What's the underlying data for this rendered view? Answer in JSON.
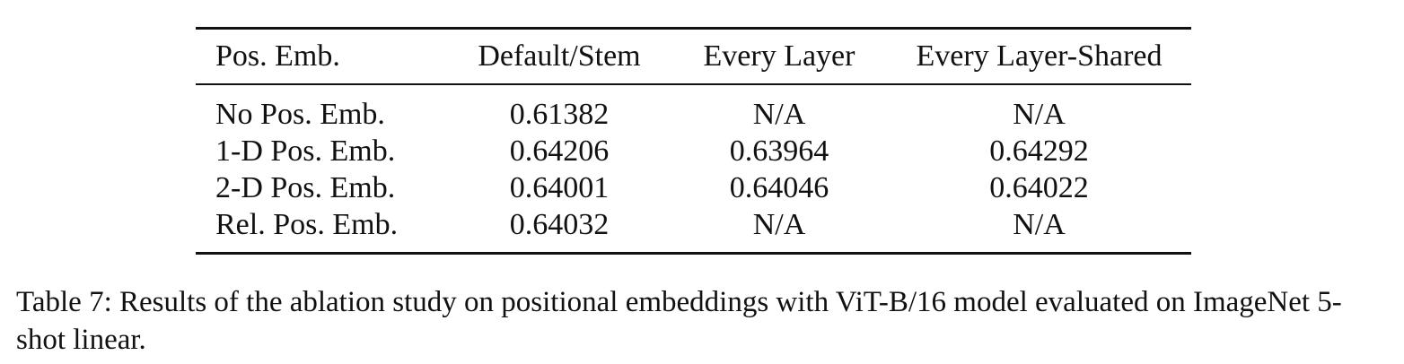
{
  "table": {
    "headers": [
      "Pos. Emb.",
      "Default/Stem",
      "Every Layer",
      "Every Layer-Shared"
    ],
    "rows": [
      [
        "No Pos. Emb.",
        "0.61382",
        "N/A",
        "N/A"
      ],
      [
        "1-D Pos. Emb.",
        "0.64206",
        "0.63964",
        "0.64292"
      ],
      [
        "2-D Pos. Emb.",
        "0.64001",
        "0.64046",
        "0.64022"
      ],
      [
        "Rel. Pos. Emb.",
        "0.64032",
        "N/A",
        "N/A"
      ]
    ]
  },
  "caption": "Table 7: Results of the ablation study on positional embeddings with ViT-B/16 model evaluated on ImageNet 5-shot linear."
}
